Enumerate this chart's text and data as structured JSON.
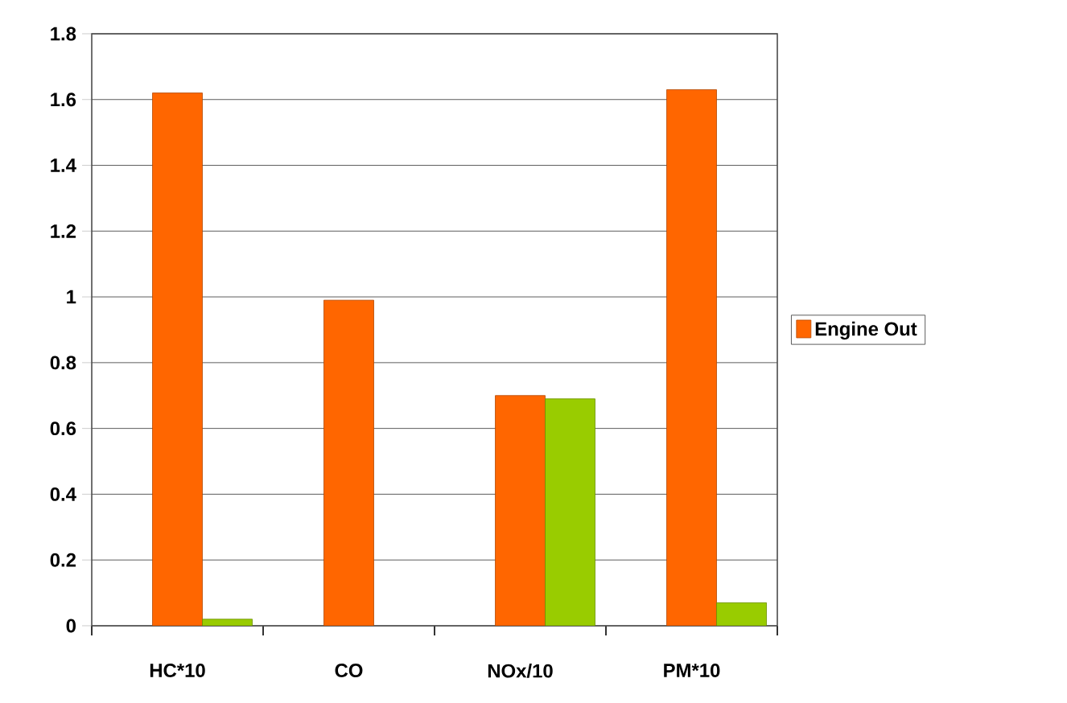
{
  "chart_data": {
    "type": "bar",
    "categories": [
      "HC*10",
      "CO",
      "NOx/10",
      "PM*10"
    ],
    "series": [
      {
        "name": "Engine Out",
        "color": "#ff6600",
        "values": [
          1.62,
          0.99,
          0.7,
          1.63
        ]
      },
      {
        "color": "#99cc00",
        "values": [
          0.02,
          null,
          0.69,
          0.07
        ]
      }
    ],
    "ylim": [
      0,
      1.8
    ],
    "yticks": [
      0,
      0.2,
      0.4,
      0.6,
      0.8,
      1,
      1.2,
      1.4,
      1.6,
      1.8
    ],
    "grid": "y",
    "legend": "right"
  }
}
